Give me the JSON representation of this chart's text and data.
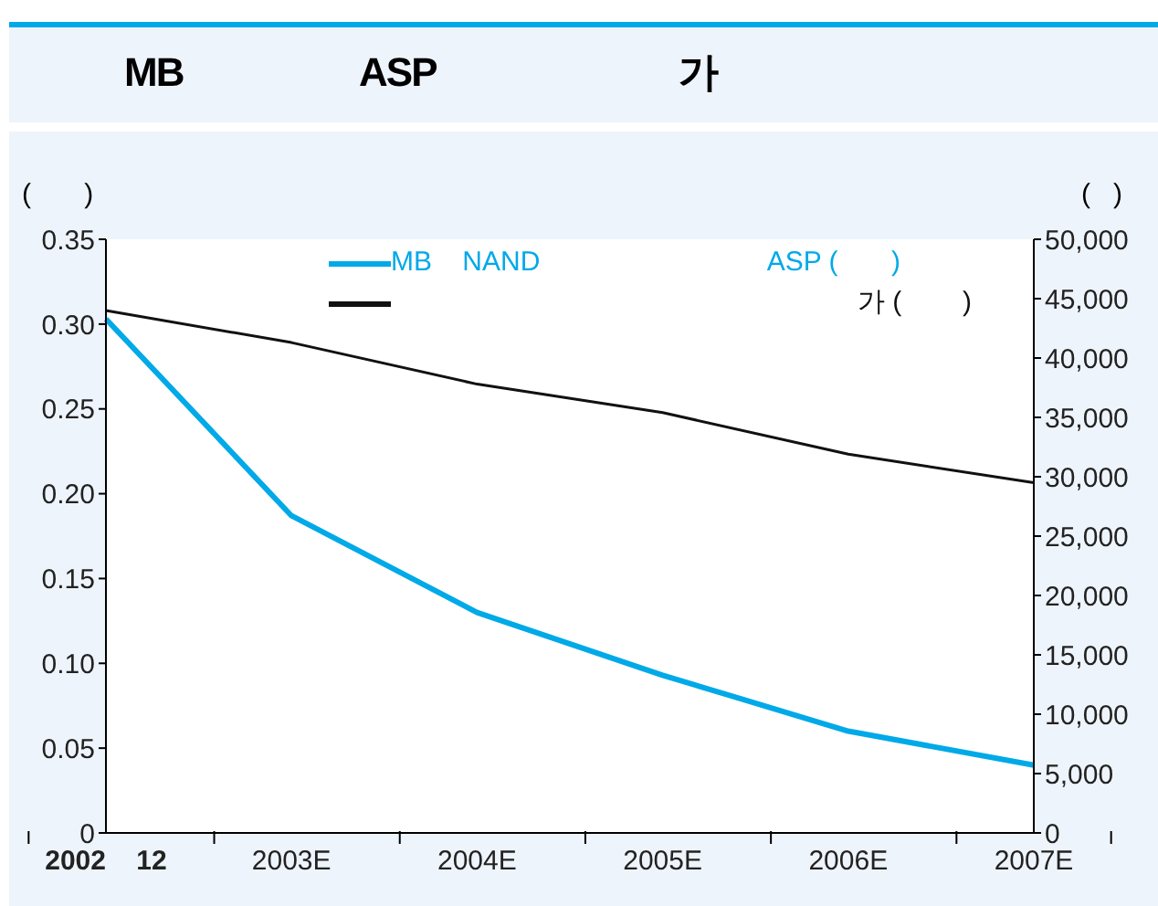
{
  "chart_data": {
    "type": "line",
    "title": "MB                   ASP                          가",
    "categories": [
      "2002    12",
      "2003E",
      "2004E",
      "2005E",
      "2006E",
      "2007E"
    ],
    "series": [
      {
        "name": "MB    NAND                              ASP (       )",
        "color": "#00a9e8",
        "values": [
          0.303,
          0.187,
          0.13,
          0.093,
          0.06,
          0.04
        ]
      },
      {
        "name": "가 (        )",
        "color": "#111111",
        "axis": "y2",
        "values": [
          44000,
          41300,
          37800,
          35400,
          31900,
          29500
        ]
      }
    ],
    "ylabel": "(       )",
    "y2label": "(   )",
    "ylim": [
      0,
      0.35
    ],
    "yticks": [
      {
        "value": 0,
        "label": "0"
      },
      {
        "value": 0.05,
        "label": "0.05"
      },
      {
        "value": 0.1,
        "label": "0.10"
      },
      {
        "value": 0.15,
        "label": "0.15"
      },
      {
        "value": 0.2,
        "label": "0.20"
      },
      {
        "value": 0.25,
        "label": "0.25"
      },
      {
        "value": 0.3,
        "label": "0.30"
      },
      {
        "value": 0.35,
        "label": "0.35"
      }
    ],
    "y2lim": [
      0,
      50000
    ],
    "y2ticks": [
      {
        "value": 0,
        "label": "0"
      },
      {
        "value": 5000,
        "label": "5,000"
      },
      {
        "value": 10000,
        "label": "10,000"
      },
      {
        "value": 15000,
        "label": "15,000"
      },
      {
        "value": 20000,
        "label": "20,000"
      },
      {
        "value": 25000,
        "label": "25,000"
      },
      {
        "value": 30000,
        "label": "30,000"
      },
      {
        "value": 35000,
        "label": "35,000"
      },
      {
        "value": 40000,
        "label": "40,000"
      },
      {
        "value": 45000,
        "label": "45,000"
      },
      {
        "value": 50000,
        "label": "50,000"
      }
    ],
    "legend": "top",
    "marker": "none",
    "line_style": "solid"
  }
}
